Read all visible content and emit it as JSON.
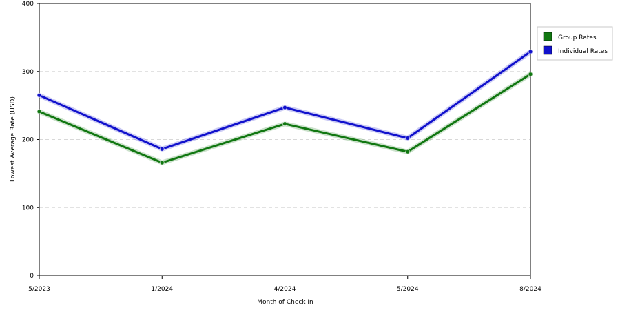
{
  "chart_data": {
    "type": "line",
    "title": "",
    "xlabel": "Month of Check In",
    "ylabel": "Lowest Average Rate (USD)",
    "categories": [
      "5/2023",
      "1/2024",
      "4/2024",
      "5/2024",
      "8/2024"
    ],
    "yticks": [
      0,
      100,
      200,
      300,
      400
    ],
    "ylim": [
      0,
      400
    ],
    "grid": true,
    "legend_position": "right",
    "series": [
      {
        "name": "Group Rates",
        "color": "#117711",
        "values": [
          241,
          166,
          223,
          182,
          296
        ]
      },
      {
        "name": "Individual Rates",
        "color": "#1111cc",
        "values": [
          265,
          186,
          247,
          202,
          329
        ]
      }
    ]
  }
}
